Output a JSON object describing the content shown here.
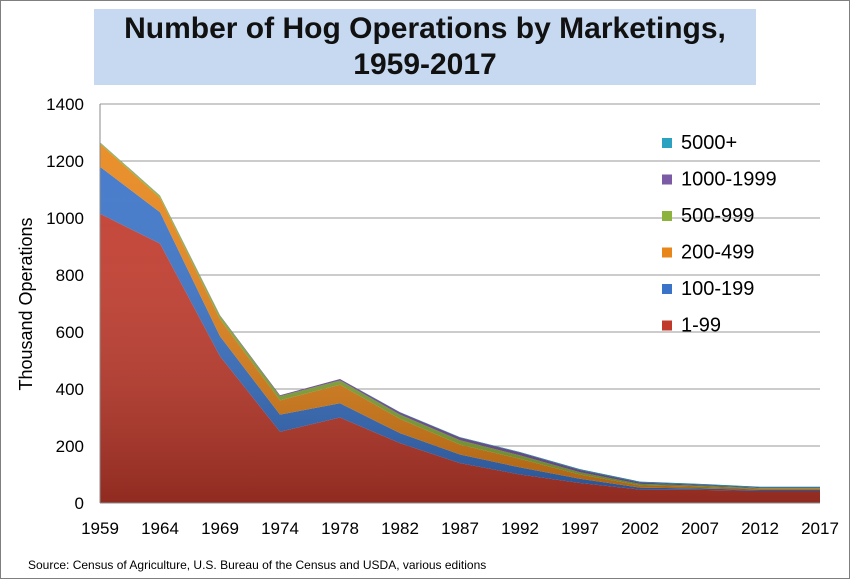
{
  "chart_data": {
    "type": "area",
    "stacked": true,
    "title_lines": [
      "Number of Hog Operations by Marketings,",
      "1959-2017"
    ],
    "ylabel": "Thousand  Operations",
    "xlabel": "",
    "x": [
      "1959",
      "1964",
      "1969",
      "1974",
      "1978",
      "1982",
      "1987",
      "1992",
      "1997",
      "2002",
      "2007",
      "2012",
      "2017"
    ],
    "ylim": [
      0,
      1400
    ],
    "yticks": [
      "0",
      "200",
      "400",
      "600",
      "800",
      "1000",
      "1200",
      "1400"
    ],
    "grid": true,
    "legend_position": "right",
    "series": [
      {
        "name": "1-99",
        "color": "#c0392b",
        "values": [
          1015,
          910,
          515,
          250,
          300,
          210,
          140,
          100,
          70,
          47,
          46,
          42,
          42
        ]
      },
      {
        "name": "100-199",
        "color": "#3a73c8",
        "values": [
          165,
          110,
          70,
          60,
          50,
          35,
          30,
          25,
          15,
          7,
          5,
          4,
          4
        ]
      },
      {
        "name": "200-499",
        "color": "#e8861a",
        "values": [
          80,
          50,
          60,
          50,
          65,
          50,
          35,
          30,
          15,
          8,
          6,
          4,
          4
        ]
      },
      {
        "name": "500-999",
        "color": "#8db33d",
        "values": [
          5,
          8,
          12,
          15,
          15,
          15,
          15,
          12,
          8,
          5,
          4,
          2,
          2
        ]
      },
      {
        "name": "1000-1999",
        "color": "#7b5aa6",
        "values": [
          1,
          1,
          2,
          3,
          5,
          8,
          10,
          10,
          8,
          5,
          3,
          2,
          2
        ]
      },
      {
        "name": "5000+",
        "color": "#2ba3c0",
        "values": [
          0,
          0,
          0,
          0,
          0,
          1,
          1,
          2,
          3,
          3,
          3,
          3,
          3
        ]
      }
    ],
    "source": "Source:  Census of Agriculture, U.S. Bureau of the Census and USDA, various editions"
  }
}
